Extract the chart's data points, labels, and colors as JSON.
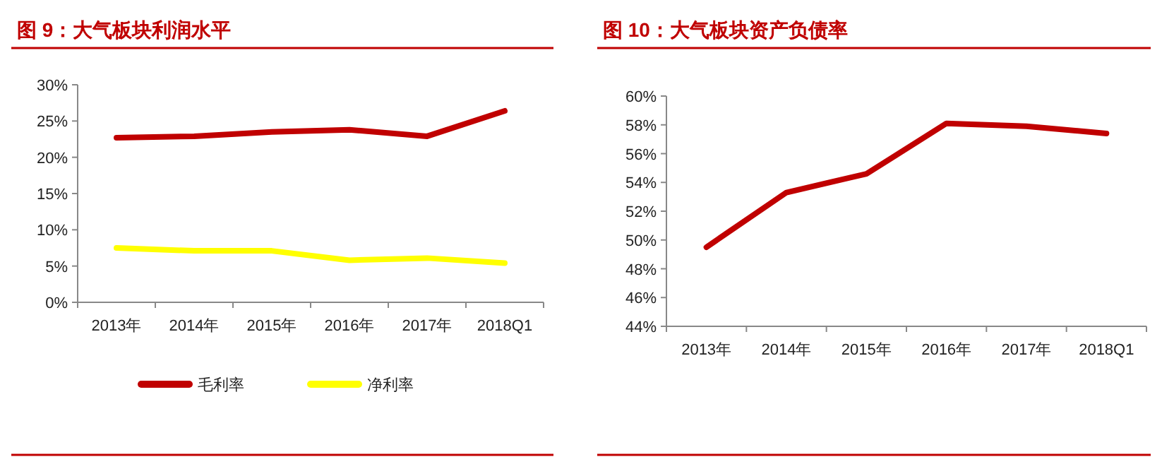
{
  "chart_data": [
    {
      "type": "line",
      "title": "图 9：大气板块利润水平",
      "categories": [
        "2013年",
        "2014年",
        "2015年",
        "2016年",
        "2017年",
        "2018Q1"
      ],
      "series": [
        {
          "name": "毛利率",
          "color": "#c00000",
          "values": [
            22.7,
            22.9,
            23.5,
            23.8,
            22.9,
            26.4
          ]
        },
        {
          "name": "净利率",
          "color": "#ffff00",
          "values": [
            7.5,
            7.1,
            7.1,
            5.8,
            6.1,
            5.4
          ]
        }
      ],
      "ylim": [
        0,
        30
      ],
      "yticks": [
        {
          "value": 0,
          "label": "0%"
        },
        {
          "value": 5,
          "label": "5%"
        },
        {
          "value": 10,
          "label": "10%"
        },
        {
          "value": 15,
          "label": "15%"
        },
        {
          "value": 20,
          "label": "20%"
        },
        {
          "value": 25,
          "label": "25%"
        },
        {
          "value": 30,
          "label": "30%"
        }
      ],
      "legend": "bottom",
      "grid": false,
      "marker": "none",
      "line_style": "solid"
    },
    {
      "type": "line",
      "title": "图 10：大气板块资产负债率",
      "categories": [
        "2013年",
        "2014年",
        "2015年",
        "2016年",
        "2017年",
        "2018Q1"
      ],
      "series": [
        {
          "color": "#c00000",
          "values": [
            49.5,
            53.3,
            54.6,
            58.1,
            57.9,
            57.4
          ]
        }
      ],
      "ylim": [
        44,
        60
      ],
      "yticks": [
        {
          "value": 44,
          "label": "44%"
        },
        {
          "value": 46,
          "label": "46%"
        },
        {
          "value": 48,
          "label": "48%"
        },
        {
          "value": 50,
          "label": "50%"
        },
        {
          "value": 52,
          "label": "52%"
        },
        {
          "value": 54,
          "label": "54%"
        },
        {
          "value": 56,
          "label": "56%"
        },
        {
          "value": 58,
          "label": "58%"
        },
        {
          "value": 60,
          "label": "60%"
        }
      ],
      "legend": false,
      "grid": false,
      "marker": "none",
      "line_style": "solid"
    }
  ]
}
